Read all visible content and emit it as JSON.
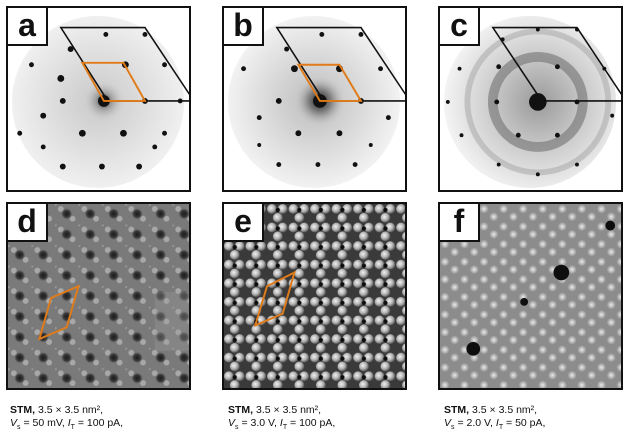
{
  "panels": {
    "a": {
      "label": "a"
    },
    "b": {
      "label": "b"
    },
    "c": {
      "label": "c"
    },
    "d": {
      "label": "d"
    },
    "e": {
      "label": "e"
    },
    "f": {
      "label": "f"
    }
  },
  "captions": [
    {
      "bold": "STM,",
      "size": "3.5 × 3.5 nm²,",
      "v_label": "V",
      "v_sub": "s",
      "v_value": "= 50 mV,",
      "i_label": "I",
      "i_sub": "T",
      "i_value": "= 100 pA,"
    },
    {
      "bold": "STM,",
      "size": "3.5 × 3.5 nm²,",
      "v_label": "V",
      "v_sub": "s",
      "v_value": "= 3.0 V,",
      "i_label": "I",
      "i_sub": "T",
      "i_value": "= 100 pA,"
    },
    {
      "bold": "STM,",
      "size": "3.5 × 3.5 nm²,",
      "v_label": "V",
      "v_sub": "s",
      "v_value": "= 2.0 V,",
      "i_label": "I",
      "i_sub": "T",
      "i_value": "= 50 pA,"
    }
  ],
  "colors": {
    "unit_cell_large": "#111111",
    "unit_cell_small": "#e07b1a"
  }
}
